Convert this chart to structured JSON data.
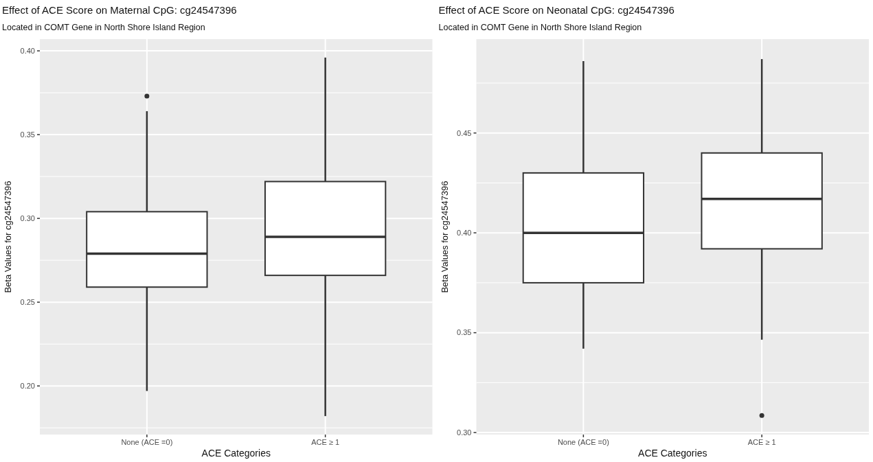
{
  "chart_data": [
    {
      "type": "box",
      "title": "Effect of ACE Score on Maternal CpG: cg24547396",
      "subtitle": "Located in COMT Gene in North Shore Island Region",
      "xlabel": "ACE Categories",
      "ylabel": "Beta Values for cg24547396",
      "categories": [
        "None (ACE =0)",
        "ACE ≥ 1"
      ],
      "ylim": [
        0.171,
        0.407
      ],
      "yticks": [
        {
          "value": 0.2,
          "label": "0.20"
        },
        0.25,
        {
          "value": 0.3,
          "label": "0.30"
        },
        0.35,
        {
          "value": 0.4,
          "label": "0.40"
        }
      ],
      "grid": true,
      "boxes": [
        {
          "low": 0.197,
          "q1": 0.259,
          "median": 0.279,
          "q3": 0.304,
          "high": 0.364,
          "outliers": [
            0.373
          ]
        },
        {
          "low": 0.182,
          "q1": 0.266,
          "median": 0.289,
          "q3": 0.322,
          "high": 0.396
        }
      ]
    },
    {
      "type": "box",
      "title": "Effect of ACE Score on Neonatal CpG: cg24547396",
      "subtitle": "Located in COMT Gene in North Shore Island Region",
      "xlabel": "ACE Categories",
      "ylabel": "Beta Values for cg24547396",
      "categories": [
        "None (ACE =0)",
        "ACE ≥ 1"
      ],
      "ylim": [
        0.299,
        0.497
      ],
      "yticks": [
        {
          "value": 0.3,
          "label": "0.30"
        },
        0.35,
        {
          "value": 0.4,
          "label": "0.40"
        },
        0.45
      ],
      "grid": true,
      "boxes": [
        {
          "low": 0.342,
          "q1": 0.375,
          "median": 0.4,
          "q3": 0.43,
          "high": 0.486
        },
        {
          "low": 0.3465,
          "q1": 0.392,
          "median": 0.417,
          "q3": 0.44,
          "high": 0.487,
          "outliers": [
            0.3085
          ]
        }
      ]
    }
  ]
}
